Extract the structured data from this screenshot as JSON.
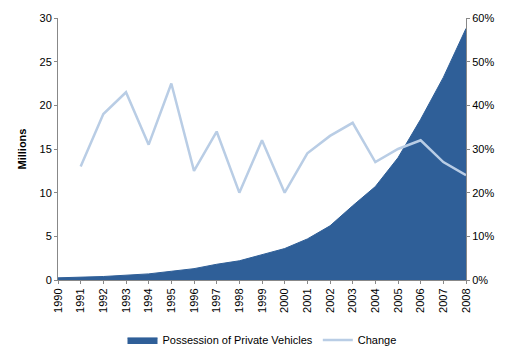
{
  "chart_data": {
    "type": "area",
    "y_label": "Millions",
    "categories": [
      "1990",
      "1991",
      "1992",
      "1993",
      "1994",
      "1995",
      "1996",
      "1997",
      "1998",
      "1999",
      "2000",
      "2001",
      "2002",
      "2003",
      "2004",
      "2005",
      "2006",
      "2007",
      "2008"
    ],
    "series": [
      {
        "name": "Possession of Private Vehicles",
        "type": "area",
        "color": "#2f5f98",
        "values": [
          0.25,
          0.3,
          0.4,
          0.55,
          0.7,
          1.0,
          1.3,
          1.8,
          2.2,
          2.9,
          3.6,
          4.7,
          6.2,
          8.5,
          10.7,
          14.0,
          18.4,
          23.2,
          28.8
        ]
      },
      {
        "name": "Change",
        "type": "line",
        "color": "#b9cde5",
        "axis": "y2",
        "values": [
          null,
          26,
          38,
          43,
          31,
          45,
          25,
          34,
          20,
          32,
          20,
          29,
          33,
          36,
          27,
          30,
          32,
          27,
          24
        ]
      }
    ],
    "ylim": [
      0,
      30
    ],
    "yticks": [
      0,
      5,
      10,
      15,
      20,
      25,
      30
    ],
    "y2lim": [
      0,
      60
    ],
    "y2ticks": [
      {
        "value": 0,
        "label": "0%"
      },
      {
        "value": 10,
        "label": "10%"
      },
      {
        "value": 20,
        "label": "20%"
      },
      {
        "value": 30,
        "label": "30%"
      },
      {
        "value": 40,
        "label": "40%"
      },
      {
        "value": 50,
        "label": "50%"
      },
      {
        "value": 60,
        "label": "60%"
      }
    ],
    "grid": false,
    "legend": "bottom"
  }
}
